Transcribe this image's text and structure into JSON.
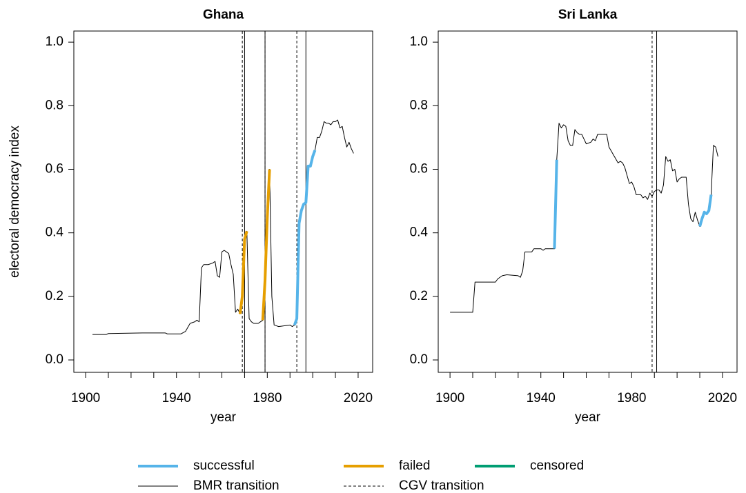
{
  "chart_data": [
    {
      "type": "line",
      "title": "Ghana",
      "xlabel": "year",
      "ylabel": "electoral democracy index",
      "xlim": [
        1894.8,
        2026.4
      ],
      "ylim": [
        -0.039,
        1.035
      ],
      "xticks": [
        1900,
        1940,
        1980,
        2020
      ],
      "xminorticks": [
        1910,
        1920,
        1930,
        1950,
        1960,
        1970,
        1990,
        2000,
        2010
      ],
      "yticks": [
        {
          "value": 0,
          "label": "0.0"
        },
        0.2,
        0.4,
        0.6,
        0.8,
        {
          "value": 1,
          "label": "1.0"
        }
      ],
      "bmr_transitions": [
        1970,
        1979,
        1997
      ],
      "cgv_transitions": [
        1969,
        1979,
        1993
      ],
      "series": [
        {
          "color": "#000000",
          "width": 1,
          "x": [
            1903,
            1909,
            1910,
            1925,
            1935,
            1936,
            1942,
            1944,
            1946,
            1948,
            1949,
            1950,
            1951,
            1952,
            1954,
            1956,
            1957,
            1958,
            1959,
            1960,
            1961,
            1962,
            1963,
            1964,
            1965,
            1966,
            1967,
            1968,
            1969,
            1970,
            1971,
            1972,
            1973,
            1974,
            1976,
            1977,
            1978,
            1979,
            1980,
            1981,
            1982,
            1983,
            1985,
            1990,
            1991,
            1992,
            1993,
            1994,
            1995,
            1996,
            1997,
            1998,
            1999,
            2000,
            2001,
            2002,
            2003,
            2004,
            2005,
            2006,
            2007,
            2008,
            2009,
            2010,
            2011,
            2012,
            2013,
            2014,
            2015,
            2016,
            2017,
            2018
          ],
          "values": [
            0.08,
            0.08,
            0.083,
            0.085,
            0.085,
            0.082,
            0.082,
            0.09,
            0.115,
            0.12,
            0.125,
            0.12,
            0.29,
            0.3,
            0.3,
            0.305,
            0.31,
            0.265,
            0.26,
            0.34,
            0.345,
            0.34,
            0.335,
            0.3,
            0.27,
            0.15,
            0.16,
            0.145,
            0.2,
            0.38,
            0.405,
            0.13,
            0.12,
            0.115,
            0.115,
            0.12,
            0.125,
            0.25,
            0.45,
            0.6,
            0.2,
            0.11,
            0.105,
            0.11,
            0.105,
            0.11,
            0.13,
            0.43,
            0.47,
            0.49,
            0.495,
            0.61,
            0.61,
            0.64,
            0.66,
            0.7,
            0.7,
            0.72,
            0.75,
            0.745,
            0.745,
            0.74,
            0.75,
            0.75,
            0.755,
            0.73,
            0.735,
            0.7,
            0.67,
            0.685,
            0.665,
            0.65
          ]
        },
        {
          "color": "#E69F00",
          "width": 4,
          "x": [
            1968,
            1969,
            1970,
            1971
          ],
          "values": [
            0.145,
            0.2,
            0.38,
            0.405
          ]
        },
        {
          "color": "#E69F00",
          "width": 4,
          "x": [
            1978,
            1979,
            1980,
            1981
          ],
          "values": [
            0.125,
            0.25,
            0.45,
            0.6
          ]
        },
        {
          "color": "#56B4E9",
          "width": 4,
          "x": [
            1992,
            1993,
            1994,
            1995,
            1996,
            1997,
            1998,
            1999,
            2000,
            2001
          ],
          "values": [
            0.11,
            0.13,
            0.43,
            0.47,
            0.49,
            0.495,
            0.61,
            0.61,
            0.64,
            0.66
          ]
        }
      ]
    },
    {
      "type": "line",
      "title": "Sri Lanka",
      "xlabel": "year",
      "xlim": [
        1894.8,
        2026.4
      ],
      "ylim": [
        -0.039,
        1.035
      ],
      "xticks": [
        1900,
        1940,
        1980,
        2020
      ],
      "xminorticks": [
        1910,
        1920,
        1930,
        1950,
        1960,
        1970,
        1990,
        2000,
        2010
      ],
      "yticks": [
        {
          "value": 0,
          "label": "0.0"
        },
        0.2,
        0.4,
        0.6,
        0.8,
        {
          "value": 1,
          "label": "1.0"
        }
      ],
      "bmr_transitions": [
        1991
      ],
      "cgv_transitions": [
        1989
      ],
      "series": [
        {
          "color": "#000000",
          "width": 1,
          "x": [
            1900,
            1910,
            1911,
            1920,
            1921,
            1923,
            1925,
            1930,
            1931,
            1932,
            1933,
            1936,
            1937,
            1940,
            1941,
            1942,
            1946,
            1947,
            1948,
            1949,
            1950,
            1951,
            1952,
            1953,
            1954,
            1955,
            1956,
            1957,
            1958,
            1959,
            1960,
            1962,
            1963,
            1964,
            1965,
            1969,
            1970,
            1972,
            1974,
            1975,
            1976,
            1977,
            1978,
            1979,
            1980,
            1981,
            1982,
            1984,
            1985,
            1986,
            1987,
            1988,
            1989,
            1990,
            1991,
            1992,
            1993,
            1994,
            1995,
            1996,
            1997,
            1998,
            1999,
            2000,
            2001,
            2002,
            2004,
            2005,
            2006,
            2007,
            2008,
            2009,
            2010,
            2011,
            2012,
            2013,
            2014,
            2015,
            2016,
            2017,
            2018
          ],
          "values": [
            0.15,
            0.15,
            0.245,
            0.245,
            0.255,
            0.265,
            0.268,
            0.265,
            0.26,
            0.28,
            0.34,
            0.34,
            0.35,
            0.35,
            0.345,
            0.35,
            0.35,
            0.63,
            0.745,
            0.73,
            0.74,
            0.735,
            0.69,
            0.675,
            0.675,
            0.725,
            0.715,
            0.71,
            0.71,
            0.695,
            0.68,
            0.685,
            0.695,
            0.69,
            0.71,
            0.71,
            0.67,
            0.645,
            0.62,
            0.625,
            0.62,
            0.605,
            0.58,
            0.555,
            0.56,
            0.545,
            0.52,
            0.52,
            0.51,
            0.515,
            0.505,
            0.525,
            0.515,
            0.53,
            0.535,
            0.535,
            0.525,
            0.55,
            0.64,
            0.625,
            0.63,
            0.595,
            0.6,
            0.56,
            0.57,
            0.575,
            0.575,
            0.49,
            0.445,
            0.435,
            0.465,
            0.44,
            0.42,
            0.445,
            0.465,
            0.46,
            0.47,
            0.52,
            0.675,
            0.67,
            0.64
          ]
        },
        {
          "color": "#56B4E9",
          "width": 4,
          "x": [
            1946,
            1947
          ],
          "values": [
            0.35,
            0.63
          ]
        },
        {
          "color": "#56B4E9",
          "width": 4,
          "x": [
            2010,
            2011,
            2012,
            2013,
            2014,
            2015
          ],
          "values": [
            0.42,
            0.445,
            0.465,
            0.46,
            0.47,
            0.52
          ]
        }
      ]
    }
  ],
  "legend": {
    "entries": [
      {
        "label": "successful",
        "color": "#56B4E9",
        "width": 4,
        "dash": "solid"
      },
      {
        "label": "failed",
        "color": "#E69F00",
        "width": 4,
        "dash": "solid"
      },
      {
        "label": "censored",
        "color": "#009E73",
        "width": 4,
        "dash": "solid"
      },
      {
        "label": "BMR transition",
        "color": "#000000",
        "width": 1,
        "dash": "solid"
      },
      {
        "label": "CGV transition",
        "color": "#000000",
        "width": 1,
        "dash": "dashed"
      }
    ]
  }
}
